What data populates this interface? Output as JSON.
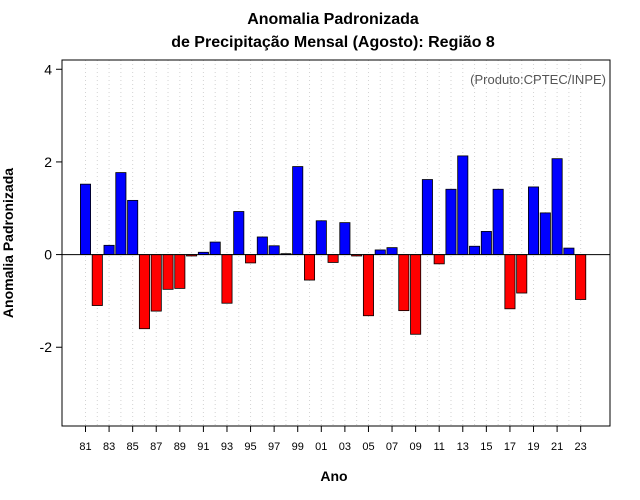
{
  "chart_data": {
    "type": "bar",
    "title": "Anomalia Padronizada",
    "subtitle": "de Precipitação Mensal (Agosto): Região 8",
    "xlabel": "Ano",
    "ylabel": "Anomalia Padronizada",
    "annotation": "(Produto:CPTEC/INPE)",
    "ylim": [
      -3.7,
      4.2
    ],
    "yticks": [
      -2,
      0,
      2,
      4
    ],
    "grid": "vertical dotted",
    "colors": {
      "positive": "#0000ff",
      "negative": "#ff0000"
    },
    "categories": [
      "81",
      "82",
      "83",
      "84",
      "85",
      "86",
      "87",
      "88",
      "89",
      "90",
      "91",
      "92",
      "93",
      "94",
      "95",
      "96",
      "97",
      "98",
      "99",
      "00",
      "01",
      "02",
      "03",
      "04",
      "05",
      "06",
      "07",
      "08",
      "09",
      "10",
      "11",
      "12",
      "13",
      "14",
      "15",
      "16",
      "17",
      "18",
      "19",
      "20",
      "21",
      "22",
      "23"
    ],
    "xtick_labels": [
      "81",
      "83",
      "85",
      "87",
      "89",
      "91",
      "93",
      "95",
      "97",
      "99",
      "01",
      "03",
      "05",
      "07",
      "09",
      "11",
      "13",
      "15",
      "17",
      "19",
      "21",
      "23"
    ],
    "values": [
      1.52,
      -1.1,
      0.2,
      1.77,
      1.17,
      -1.6,
      -1.22,
      -0.75,
      -0.73,
      -0.03,
      0.05,
      0.27,
      -1.05,
      0.93,
      -0.18,
      0.38,
      0.19,
      0.02,
      1.9,
      -0.55,
      0.73,
      -0.17,
      0.69,
      -0.03,
      -1.32,
      0.1,
      0.15,
      -1.21,
      -1.72,
      1.62,
      -0.2,
      1.41,
      2.13,
      0.18,
      0.5,
      1.41,
      -1.17,
      -0.83,
      1.46,
      0.9,
      2.07,
      0.14,
      -0.97
    ]
  }
}
